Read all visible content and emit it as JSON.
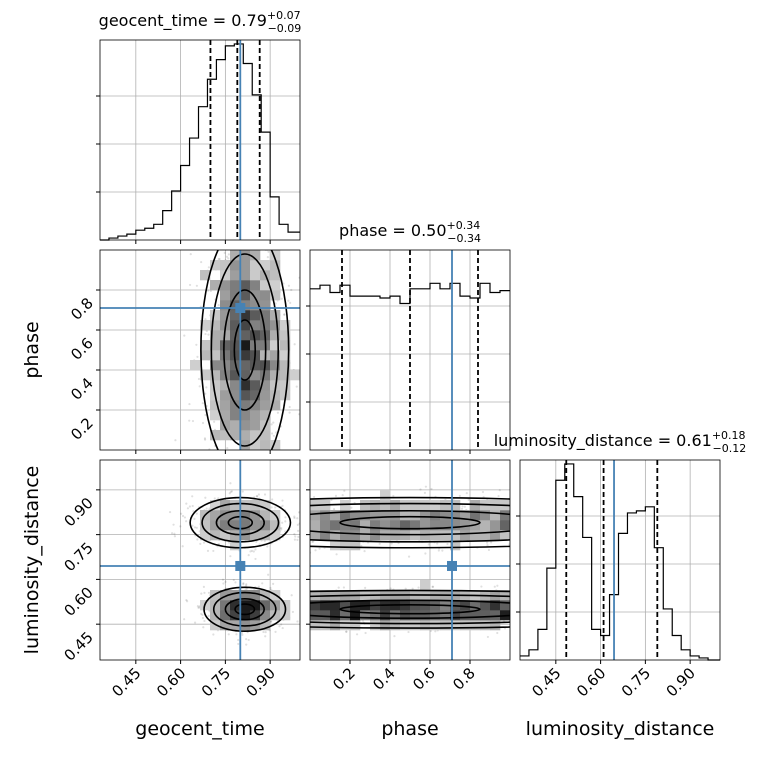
{
  "chart_data": {
    "type": "corner",
    "parameters": [
      "geocent_time",
      "phase",
      "luminosity_distance"
    ],
    "truths": [
      0.8,
      0.71,
      0.645
    ],
    "colors": {
      "truth": "#4682b4",
      "line": "#000000",
      "grid": "#b0b0b0"
    },
    "grid": true,
    "diagonal": [
      {
        "title_base": "geocent_time = 0.79",
        "title_plus": "+0.07",
        "title_minus": "−0.09",
        "quantiles": [
          0.7,
          0.79,
          0.865
        ],
        "xlim": [
          0.33,
          1.0
        ],
        "ylim": [
          0,
          1.0
        ],
        "bins": [
          0.33,
          0.36,
          0.39,
          0.42,
          0.45,
          0.48,
          0.51,
          0.54,
          0.57,
          0.6,
          0.63,
          0.66,
          0.69,
          0.72,
          0.75,
          0.78,
          0.81,
          0.84,
          0.87,
          0.9,
          0.93,
          0.96,
          1.0
        ],
        "counts": [
          0,
          0.01,
          0.02,
          0.03,
          0.05,
          0.06,
          0.08,
          0.15,
          0.25,
          0.38,
          0.52,
          0.68,
          0.82,
          0.92,
          0.99,
          1.0,
          0.9,
          0.74,
          0.55,
          0.22,
          0.08,
          0.04
        ]
      },
      {
        "title_base": "phase = 0.50",
        "title_plus": "+0.34",
        "title_minus": "−0.34",
        "quantiles": [
          0.16,
          0.5,
          0.84
        ],
        "xlim": [
          0.0,
          1.0
        ],
        "ylim": [
          0,
          1.0
        ],
        "bins": [
          0.0,
          0.05,
          0.1,
          0.15,
          0.2,
          0.25,
          0.3,
          0.35,
          0.4,
          0.45,
          0.5,
          0.55,
          0.6,
          0.65,
          0.7,
          0.75,
          0.8,
          0.85,
          0.9,
          0.95,
          1.0
        ],
        "counts": [
          0.88,
          0.9,
          0.86,
          0.9,
          0.84,
          0.84,
          0.84,
          0.83,
          0.84,
          0.8,
          0.88,
          0.88,
          0.91,
          0.88,
          0.91,
          0.84,
          0.83,
          0.91,
          0.86,
          0.87
        ]
      },
      {
        "title_base": "luminosity_distance = 0.61",
        "title_plus": "+0.18",
        "title_minus": "−0.12",
        "quantiles": [
          0.485,
          0.61,
          0.79
        ],
        "xlim": [
          0.33,
          1.0
        ],
        "ylim": [
          0,
          1.0
        ],
        "bins": [
          0.33,
          0.36,
          0.39,
          0.42,
          0.45,
          0.48,
          0.51,
          0.54,
          0.57,
          0.6,
          0.63,
          0.66,
          0.69,
          0.72,
          0.75,
          0.78,
          0.81,
          0.84,
          0.87,
          0.9,
          0.93,
          0.96,
          1.0
        ],
        "counts": [
          0.02,
          0.05,
          0.15,
          0.45,
          0.88,
          0.96,
          0.8,
          0.6,
          0.15,
          0.12,
          0.32,
          0.62,
          0.72,
          0.73,
          0.75,
          0.55,
          0.25,
          0.12,
          0.05,
          0.02,
          0.01,
          0
        ]
      }
    ],
    "panels": [
      {
        "row": 1,
        "col": 0,
        "xlim": [
          0.33,
          1.0
        ],
        "ylim": [
          0.0,
          1.0
        ],
        "blobs": [
          {
            "cx": 0.815,
            "cy": 0.5,
            "sx": 0.07,
            "sy": 0.3,
            "n": 2500
          }
        ]
      },
      {
        "row": 2,
        "col": 0,
        "xlim": [
          0.33,
          1.0
        ],
        "ylim": [
          0.33,
          1.0
        ],
        "blobs": [
          {
            "cx": 0.8,
            "cy": 0.79,
            "sx": 0.08,
            "sy": 0.04,
            "n": 1300
          },
          {
            "cx": 0.815,
            "cy": 0.5,
            "sx": 0.065,
            "sy": 0.035,
            "n": 1700
          }
        ]
      },
      {
        "row": 2,
        "col": 1,
        "xlim": [
          0.0,
          1.0
        ],
        "ylim": [
          0.33,
          1.0
        ],
        "blobs": [
          {
            "cx": 0.5,
            "cy": 0.79,
            "sx": 0.5,
            "sy": 0.04,
            "n": 1300,
            "uniform_x": true
          },
          {
            "cx": 0.5,
            "cy": 0.5,
            "sx": 0.5,
            "sy": 0.03,
            "n": 1700,
            "uniform_x": true
          }
        ]
      }
    ],
    "ticks": {
      "geocent_time": [
        "0.45",
        "0.60",
        "0.75",
        "0.90"
      ],
      "phase_x": [
        "0.2",
        "0.4",
        "0.6",
        "0.8"
      ],
      "phase_y": [
        "0.2",
        "0.4",
        "0.6",
        "0.8"
      ],
      "luminosity_distance": [
        "0.45",
        "0.60",
        "0.75",
        "0.90"
      ]
    },
    "tick_values": {
      "geocent_time": [
        0.45,
        0.6,
        0.75,
        0.9
      ],
      "phase": [
        0.2,
        0.4,
        0.6,
        0.8
      ],
      "luminosity_distance": [
        0.45,
        0.6,
        0.75,
        0.9
      ]
    },
    "xlabels": [
      "geocent_time",
      "phase",
      "luminosity_distance"
    ],
    "ylabels": [
      "phase",
      "luminosity_distance"
    ]
  }
}
